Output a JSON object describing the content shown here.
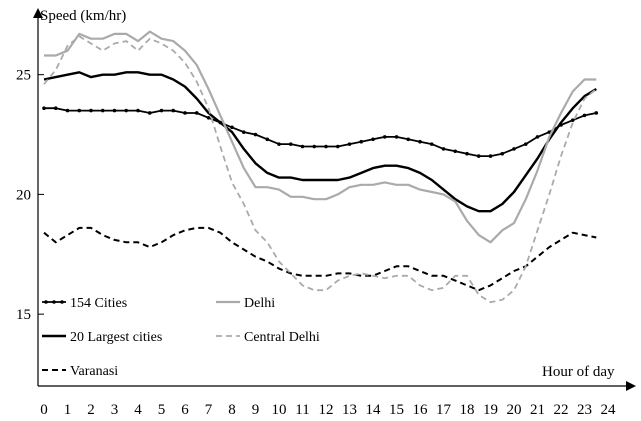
{
  "chart_data": {
    "type": "line",
    "ylabel": "Speed (km/hr)",
    "xlabel": "Hour of day",
    "x_ticks": [
      0,
      1,
      2,
      3,
      4,
      5,
      6,
      7,
      8,
      9,
      10,
      11,
      12,
      13,
      14,
      15,
      16,
      17,
      18,
      19,
      20,
      21,
      22,
      23,
      24
    ],
    "y_ticks": [
      15,
      20,
      25
    ],
    "xlim": [
      0,
      24
    ],
    "ylim": [
      12.0,
      27.7
    ],
    "x": [
      0,
      0.5,
      1,
      1.5,
      2,
      2.5,
      3,
      3.5,
      4,
      4.5,
      5,
      5.5,
      6,
      6.5,
      7,
      7.5,
      8,
      8.5,
      9,
      9.5,
      10,
      10.5,
      11,
      11.5,
      12,
      12.5,
      13,
      13.5,
      14,
      14.5,
      15,
      15.5,
      16,
      16.5,
      17,
      17.5,
      18,
      18.5,
      19,
      19.5,
      20,
      20.5,
      21,
      21.5,
      22,
      22.5,
      23,
      23.5
    ],
    "series": [
      {
        "name": "154 Cities",
        "style": "solid-marker",
        "color": "#000000",
        "values": [
          23.6,
          23.6,
          23.5,
          23.5,
          23.5,
          23.5,
          23.5,
          23.5,
          23.5,
          23.4,
          23.5,
          23.5,
          23.4,
          23.4,
          23.2,
          23.0,
          22.8,
          22.6,
          22.5,
          22.3,
          22.1,
          22.1,
          22.0,
          22.0,
          22.0,
          22.0,
          22.1,
          22.2,
          22.3,
          22.4,
          22.4,
          22.3,
          22.2,
          22.1,
          21.9,
          21.8,
          21.7,
          21.6,
          21.6,
          21.7,
          21.9,
          22.1,
          22.4,
          22.6,
          22.9,
          23.1,
          23.3,
          23.4
        ]
      },
      {
        "name": "20 Largest cities",
        "style": "solid",
        "color": "#000000",
        "values": [
          24.8,
          24.9,
          25.0,
          25.1,
          24.9,
          25.0,
          25.0,
          25.1,
          25.1,
          25.0,
          25.0,
          24.8,
          24.5,
          24.0,
          23.4,
          23.0,
          22.6,
          21.9,
          21.3,
          20.9,
          20.7,
          20.7,
          20.6,
          20.6,
          20.6,
          20.6,
          20.7,
          20.9,
          21.1,
          21.2,
          21.2,
          21.1,
          20.9,
          20.6,
          20.2,
          19.8,
          19.5,
          19.3,
          19.3,
          19.6,
          20.1,
          20.8,
          21.5,
          22.3,
          23.0,
          23.6,
          24.1,
          24.4
        ]
      },
      {
        "name": "Varanasi",
        "style": "dashed",
        "color": "#000000",
        "values": [
          18.4,
          18.0,
          18.3,
          18.6,
          18.6,
          18.3,
          18.1,
          18.0,
          18.0,
          17.8,
          18.0,
          18.3,
          18.5,
          18.6,
          18.6,
          18.4,
          18.0,
          17.7,
          17.4,
          17.2,
          16.9,
          16.7,
          16.6,
          16.6,
          16.6,
          16.7,
          16.7,
          16.6,
          16.6,
          16.8,
          17.0,
          17.0,
          16.8,
          16.6,
          16.6,
          16.4,
          16.2,
          16.0,
          16.2,
          16.5,
          16.8,
          17.0,
          17.4,
          17.8,
          18.1,
          18.4,
          18.3,
          18.2
        ]
      },
      {
        "name": "Delhi",
        "style": "solid-gray",
        "color": "#aaaaaa",
        "values": [
          25.8,
          25.8,
          26.0,
          26.7,
          26.5,
          26.5,
          26.7,
          26.7,
          26.4,
          26.8,
          26.5,
          26.4,
          26.0,
          25.4,
          24.4,
          23.3,
          22.2,
          21.1,
          20.3,
          20.3,
          20.2,
          19.9,
          19.9,
          19.8,
          19.8,
          20.0,
          20.3,
          20.4,
          20.4,
          20.5,
          20.4,
          20.4,
          20.2,
          20.1,
          20.0,
          19.7,
          18.9,
          18.3,
          18.0,
          18.5,
          18.8,
          19.8,
          21.0,
          22.4,
          23.4,
          24.3,
          24.8,
          24.8
        ]
      },
      {
        "name": "Central Delhi",
        "style": "dashed-gray",
        "color": "#aaaaaa",
        "values": [
          24.6,
          25.2,
          26.2,
          26.6,
          26.3,
          26.0,
          26.3,
          26.4,
          26.0,
          26.5,
          26.3,
          26.0,
          25.5,
          24.7,
          23.6,
          22.0,
          20.5,
          19.6,
          18.5,
          18.0,
          17.2,
          16.7,
          16.2,
          16.0,
          16.0,
          16.4,
          16.6,
          16.7,
          16.6,
          16.5,
          16.6,
          16.6,
          16.2,
          16.0,
          16.1,
          16.6,
          16.6,
          15.8,
          15.5,
          15.6,
          16.0,
          17.0,
          18.5,
          20.0,
          21.6,
          23.0,
          24.0,
          24.4
        ]
      }
    ]
  }
}
